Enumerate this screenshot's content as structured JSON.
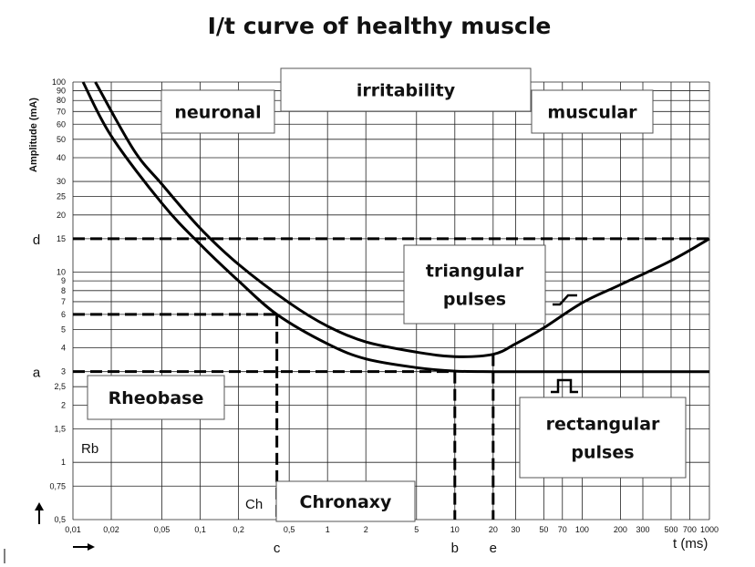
{
  "chart_data": {
    "type": "line",
    "title": "I/t curve of healthy muscle",
    "xlabel": "t (ms)",
    "ylabel": "Amplitude (mA)",
    "x_scale": "log",
    "y_scale": "log",
    "xlim": [
      0.01,
      1000
    ],
    "ylim": [
      0.5,
      100
    ],
    "grid": true,
    "x_ticks": [
      "0,01",
      "0,02",
      "0,05",
      "0,1",
      "0,2",
      "0,5",
      "1",
      "2",
      "5",
      "10",
      "20",
      "30",
      "50",
      "70",
      "100",
      "200",
      "300",
      "500",
      "700",
      "1000"
    ],
    "x_tick_values": [
      0.01,
      0.02,
      0.05,
      0.1,
      0.2,
      0.5,
      1,
      2,
      5,
      10,
      20,
      30,
      50,
      70,
      100,
      200,
      300,
      500,
      700,
      1000
    ],
    "y_ticks": [
      "100",
      "90",
      "80",
      "70",
      "60",
      "50",
      "40",
      "30",
      "25",
      "20",
      "15",
      "10",
      "9",
      "8",
      "7",
      "6",
      "5",
      "4",
      "3",
      "2,5",
      "2",
      "1,5",
      "1",
      "0,75",
      "0,5"
    ],
    "y_tick_values": [
      100,
      90,
      80,
      70,
      60,
      50,
      40,
      30,
      25,
      20,
      15,
      10,
      9,
      8,
      7,
      6,
      5,
      4,
      3,
      2.5,
      2,
      1.5,
      1,
      0.75,
      0.5
    ],
    "series": [
      {
        "name": "rectangular pulses",
        "x": [
          0.012,
          0.02,
          0.05,
          0.1,
          0.2,
          0.4,
          1,
          2,
          5,
          10,
          20,
          50,
          100,
          1000
        ],
        "y": [
          100,
          52,
          23,
          14,
          9,
          6,
          4.2,
          3.5,
          3.15,
          3.02,
          3,
          3,
          3,
          3
        ]
      },
      {
        "name": "triangular pulses",
        "x": [
          0.015,
          0.03,
          0.05,
          0.1,
          0.2,
          0.5,
          1,
          2,
          5,
          10,
          20,
          30,
          50,
          100,
          200,
          500,
          1000
        ],
        "y": [
          100,
          44,
          29,
          17,
          11,
          6.9,
          5.2,
          4.3,
          3.8,
          3.6,
          3.7,
          4.2,
          5.1,
          6.9,
          8.6,
          11.5,
          15
        ]
      }
    ],
    "guides": {
      "horizontal": [
        {
          "label": "d",
          "y": 15,
          "x_from": 0.01,
          "x_to": 1000
        },
        {
          "label": "",
          "y": 6,
          "x_from": 0.01,
          "x_to": 0.4
        },
        {
          "label": "a",
          "y": 3,
          "x_from": 0.01,
          "x_to": 10
        }
      ],
      "vertical": [
        {
          "label": "c",
          "x": 0.4,
          "y_from": 0.5,
          "y_to": 6
        },
        {
          "label": "b",
          "x": 10,
          "y_from": 0.5,
          "y_to": 3
        },
        {
          "label": "e",
          "x": 20,
          "y_from": 0.5,
          "y_to": 3.7
        }
      ]
    },
    "boxes": [
      {
        "text": [
          "neuronal"
        ]
      },
      {
        "text": [
          "irritability"
        ]
      },
      {
        "text": [
          "muscular"
        ]
      },
      {
        "text": [
          "triangular",
          "pulses"
        ]
      },
      {
        "text": [
          "Rheobase"
        ]
      },
      {
        "text": [
          "rectangular",
          "pulses"
        ]
      },
      {
        "text": [
          "Chronaxy"
        ]
      }
    ],
    "labels": {
      "rb": "Rb",
      "ch": "Ch"
    }
  }
}
